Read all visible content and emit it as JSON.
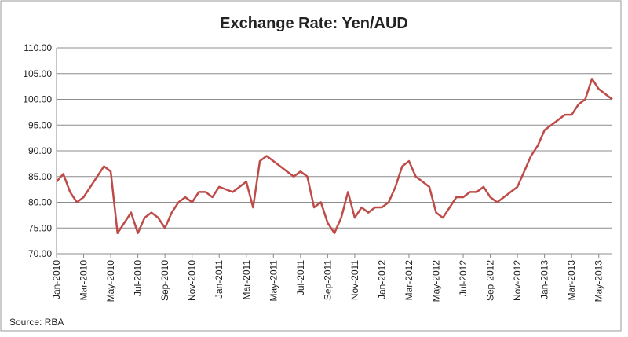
{
  "chart_data": {
    "type": "line",
    "title": "Exchange Rate: Yen/AUD",
    "source": "Source: RBA",
    "categories": [
      "Jan-2010",
      null,
      null,
      null,
      "Mar-2010",
      null,
      null,
      null,
      "May-2010",
      null,
      null,
      null,
      "Jul-2010",
      null,
      null,
      null,
      "Sep-2010",
      null,
      null,
      null,
      "Nov-2010",
      null,
      null,
      null,
      "Jan-2011",
      null,
      null,
      null,
      "Mar-2011",
      null,
      null,
      null,
      "May-2011",
      null,
      null,
      null,
      "Jul-2011",
      null,
      null,
      null,
      "Sep-2011",
      null,
      null,
      null,
      "Nov-2011",
      null,
      null,
      null,
      "Jan-2012",
      null,
      null,
      null,
      "Mar-2012",
      null,
      null,
      null,
      "May-2012",
      null,
      null,
      null,
      "Jul-2012",
      null,
      null,
      null,
      "Sep-2012",
      null,
      null,
      null,
      "Nov-2012",
      null,
      null,
      null,
      "Jan-2013",
      null,
      null,
      null,
      "Mar-2013",
      null,
      null,
      null,
      "May-2013",
      null,
      null
    ],
    "series": [
      {
        "name": "Yen/AUD",
        "color": "#be4b48",
        "values": [
          84,
          85.5,
          82,
          80,
          81,
          83,
          85,
          87,
          86,
          74,
          76,
          78,
          74,
          77,
          78,
          77,
          75,
          78,
          80,
          81,
          80,
          82,
          82,
          81,
          83,
          82.5,
          82,
          83,
          84,
          79,
          88,
          89,
          88,
          87,
          86,
          85,
          86,
          85,
          79,
          80,
          76,
          74,
          77,
          82,
          77,
          79,
          78,
          79,
          79,
          80,
          83,
          87,
          88,
          85,
          84,
          83,
          78,
          77,
          79,
          81,
          81,
          82,
          82,
          83,
          81,
          80,
          81,
          82,
          83,
          86,
          89,
          91,
          94,
          95,
          96,
          97,
          97,
          99,
          100,
          104,
          102,
          101,
          100
        ]
      }
    ],
    "ylim": [
      70,
      110
    ],
    "yticks": [
      {
        "value": 70,
        "label": "70.00"
      },
      {
        "value": 75,
        "label": "75.00"
      },
      {
        "value": 80,
        "label": "80.00"
      },
      {
        "value": 85,
        "label": "85.00"
      },
      {
        "value": 90,
        "label": "90.00"
      },
      {
        "value": 95,
        "label": "95.00"
      },
      {
        "value": 100,
        "label": "100.00"
      },
      {
        "value": 105,
        "label": "105.00"
      },
      {
        "value": 110,
        "label": "110.00"
      }
    ],
    "grid": true
  }
}
